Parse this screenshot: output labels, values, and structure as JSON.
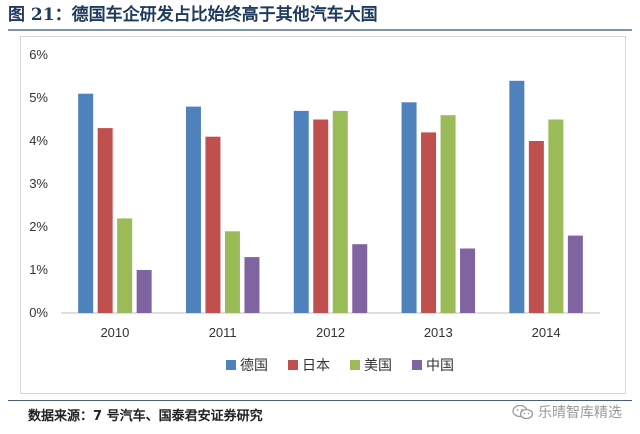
{
  "figure": {
    "title": "图 21：德国车企研发占比始终高于其他汽车大国",
    "source": "数据来源：7 号汽车、国泰君安证券研究",
    "watermark": "乐晴智库精选",
    "watermark_icon": "wechat-icon"
  },
  "chart_data": {
    "type": "bar",
    "title": "",
    "xlabel": "",
    "ylabel": "",
    "categories": [
      "2010",
      "2011",
      "2012",
      "2013",
      "2014"
    ],
    "series": [
      {
        "name": "德国",
        "color": "#4f81bd",
        "values": [
          5.1,
          4.8,
          4.7,
          4.9,
          5.4
        ]
      },
      {
        "name": "日本",
        "color": "#c0504d",
        "values": [
          4.3,
          4.1,
          4.5,
          4.2,
          4.0
        ]
      },
      {
        "name": "美国",
        "color": "#9bbb59",
        "values": [
          2.2,
          1.9,
          4.7,
          4.6,
          4.5
        ]
      },
      {
        "name": "中国",
        "color": "#8064a2",
        "values": [
          1.0,
          1.3,
          1.6,
          1.5,
          1.8
        ]
      }
    ],
    "ylim": [
      0,
      6
    ],
    "yticks": [
      "0%",
      "1%",
      "2%",
      "3%",
      "4%",
      "5%",
      "6%"
    ],
    "grid": false,
    "legend": "bottom"
  }
}
